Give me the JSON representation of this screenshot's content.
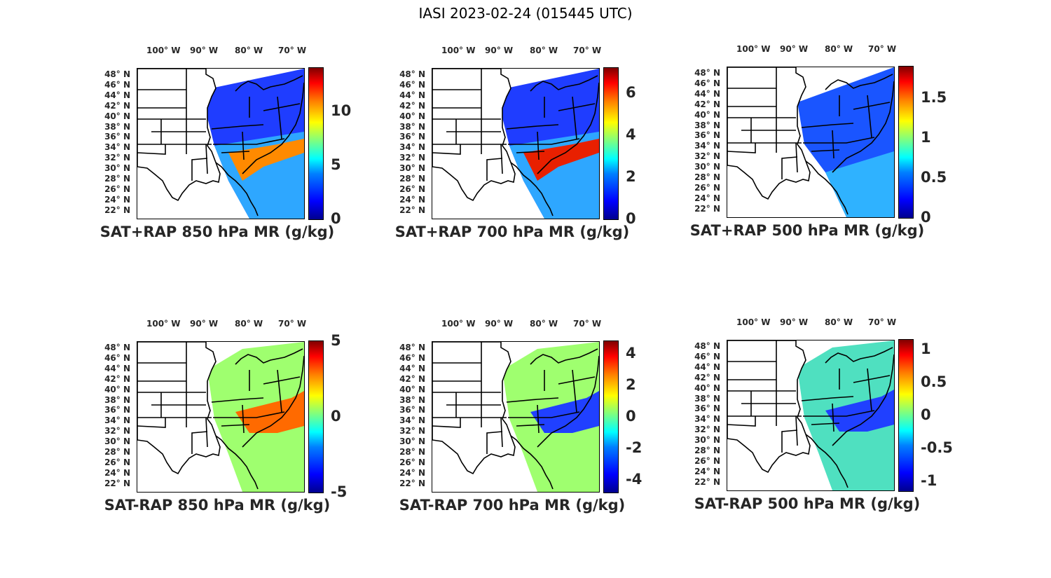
{
  "figure": {
    "title": "IASI 2023-02-24 (015445 UTC)"
  },
  "axes": {
    "lon_labels": [
      "100° W",
      "90° W",
      "80° W",
      "70° W"
    ],
    "lat_labels": [
      "48° N",
      "46° N",
      "44° N",
      "42° N",
      "40° N",
      "38° N",
      "36° N",
      "34° N",
      "32° N",
      "30° N",
      "28° N",
      "26° N",
      "24° N",
      "22° N"
    ]
  },
  "colormap": {
    "name": "jet",
    "low": "#00008f",
    "high": "#800000"
  },
  "chart_data": [
    {
      "type": "heatmap",
      "title": "SAT+RAP 850 hPa MR (g/kg)",
      "clim": [
        0,
        14
      ],
      "ticks": [
        "10",
        "5",
        "0"
      ],
      "tick_values": [
        10,
        5,
        0
      ]
    },
    {
      "type": "heatmap",
      "title": "SAT+RAP 700 hPa MR (g/kg)",
      "clim": [
        0,
        7.2
      ],
      "ticks": [
        "6",
        "4",
        "2",
        "0"
      ],
      "tick_values": [
        6,
        4,
        2,
        0
      ]
    },
    {
      "type": "heatmap",
      "title": "SAT+RAP 500 hPa MR (g/kg)",
      "clim": [
        0,
        1.9
      ],
      "ticks": [
        "1.5",
        "1",
        "0.5",
        "0"
      ],
      "tick_values": [
        1.5,
        1,
        0.5,
        0
      ]
    },
    {
      "type": "heatmap",
      "title": "SAT-RAP 850 hPa MR (g/kg)",
      "clim": [
        -5,
        5
      ],
      "ticks": [
        "5",
        "0",
        "-5"
      ],
      "tick_values": [
        5,
        0,
        -5
      ]
    },
    {
      "type": "heatmap",
      "title": "SAT-RAP 700 hPa MR (g/kg)",
      "clim": [
        -4.8,
        4.8
      ],
      "ticks": [
        "4",
        "2",
        "0",
        "-2",
        "-4"
      ],
      "tick_values": [
        4,
        2,
        0,
        -2,
        -4
      ]
    },
    {
      "type": "heatmap",
      "title": "SAT-RAP 500 hPa MR (g/kg)",
      "clim": [
        -1.15,
        1.15
      ],
      "ticks": [
        "1",
        "0.5",
        "0",
        "-0.5",
        "-1"
      ],
      "tick_values": [
        1,
        0.5,
        0,
        -0.5,
        -1
      ]
    }
  ]
}
